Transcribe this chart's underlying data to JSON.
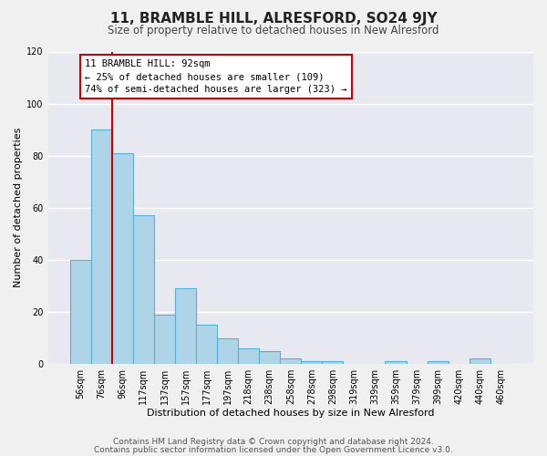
{
  "title": "11, BRAMBLE HILL, ALRESFORD, SO24 9JY",
  "subtitle": "Size of property relative to detached houses in New Alresford",
  "xlabel": "Distribution of detached houses by size in New Alresford",
  "ylabel": "Number of detached properties",
  "bar_labels": [
    "56sqm",
    "76sqm",
    "96sqm",
    "117sqm",
    "137sqm",
    "157sqm",
    "177sqm",
    "197sqm",
    "218sqm",
    "238sqm",
    "258sqm",
    "278sqm",
    "298sqm",
    "319sqm",
    "339sqm",
    "359sqm",
    "379sqm",
    "399sqm",
    "420sqm",
    "440sqm",
    "460sqm"
  ],
  "bar_heights": [
    40,
    90,
    81,
    57,
    19,
    29,
    15,
    10,
    6,
    5,
    2,
    1,
    1,
    0,
    0,
    1,
    0,
    1,
    0,
    2,
    0
  ],
  "bar_color": "#aed4e8",
  "bar_edge_color": "#5bafd6",
  "vline_color": "#cc0000",
  "ylim": [
    0,
    120
  ],
  "annotation_title": "11 BRAMBLE HILL: 92sqm",
  "annotation_line1": "← 25% of detached houses are smaller (109)",
  "annotation_line2": "74% of semi-detached houses are larger (323) →",
  "footnote1": "Contains HM Land Registry data © Crown copyright and database right 2024.",
  "footnote2": "Contains public sector information licensed under the Open Government Licence v3.0.",
  "background_color": "#f0f0f0",
  "plot_bg_color": "#e8e8f0",
  "grid_color": "#ffffff",
  "title_fontsize": 11,
  "subtitle_fontsize": 8.5,
  "axis_label_fontsize": 8,
  "tick_fontsize": 7,
  "footnote_fontsize": 6.5,
  "ann_fontsize": 7.5
}
